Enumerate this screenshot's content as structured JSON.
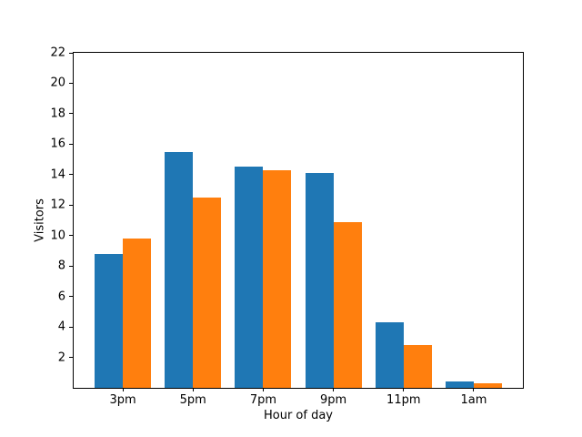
{
  "chart_data": {
    "type": "bar",
    "title": "",
    "xlabel": "Hour of day",
    "ylabel": "Visitors",
    "categories": [
      "3pm",
      "5pm",
      "7pm",
      "9pm",
      "11pm",
      "1am"
    ],
    "series": [
      {
        "key": "blue",
        "color": "#1f77b4",
        "values": [
          8.8,
          15.5,
          14.5,
          14.1,
          4.3,
          0.4
        ]
      },
      {
        "key": "orange",
        "color": "#ff7f0e",
        "values": [
          9.8,
          12.5,
          14.3,
          10.9,
          2.8,
          0.3
        ]
      }
    ],
    "ylim": [
      0,
      22
    ],
    "yticks": [
      2,
      4,
      6,
      8,
      10,
      12,
      14,
      16,
      18,
      20,
      22
    ],
    "grid": false,
    "legend": false,
    "background": "#ffffff",
    "spine_color": "#000000"
  }
}
